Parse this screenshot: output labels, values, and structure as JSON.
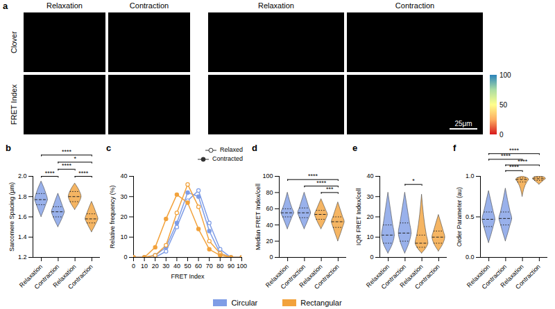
{
  "images": {
    "panel": "a",
    "groups": [
      {
        "columns": [
          "Relaxation",
          "Contraction"
        ]
      },
      {
        "columns": [
          "Relaxation",
          "Contraction"
        ]
      }
    ],
    "rows": [
      "Clover",
      "FRET Index"
    ],
    "colorbar": {
      "range": [
        0,
        100
      ],
      "ticks": [
        0,
        50,
        100
      ]
    },
    "scale_bar": "25μm"
  },
  "shared_legend": {
    "position": "bottom",
    "entries": [
      {
        "name": "Circular",
        "color": "#7f9de6"
      },
      {
        "name": "Rectangular",
        "color": "#f2a23c"
      }
    ]
  },
  "chart_data": [
    {
      "type": "violin",
      "panel": "b",
      "ylabel": "Sarcomere Spacing (μm)",
      "categories": [
        "Relaxation",
        "Contraction",
        "Relaxation",
        "Contraction"
      ],
      "groups": [
        "Circular",
        "Circular",
        "Rectangular",
        "Rectangular"
      ],
      "colors": [
        "#7f9de6",
        "#7f9de6",
        "#f2a23c",
        "#f2a23c"
      ],
      "min": [
        1.6,
        1.5,
        1.67,
        1.45
      ],
      "q1": [
        1.72,
        1.6,
        1.75,
        1.54
      ],
      "median": [
        1.77,
        1.65,
        1.8,
        1.58
      ],
      "q3": [
        1.83,
        1.7,
        1.85,
        1.63
      ],
      "max": [
        1.95,
        1.83,
        1.93,
        1.75
      ],
      "ylim": [
        1.2,
        2.0
      ],
      "yticks": [
        1.2,
        1.4,
        1.6,
        1.8,
        {
          "value": 2.0,
          "label": "2.0"
        }
      ],
      "annotations": [
        {
          "from": 0,
          "to": 1,
          "y": 2.0,
          "text": "****"
        },
        {
          "from": 2,
          "to": 3,
          "y": 2.0,
          "text": "****"
        },
        {
          "from": 1,
          "to": 2,
          "y": 2.07,
          "text": "****"
        },
        {
          "from": 1,
          "to": 3,
          "y": 2.14,
          "text": "*"
        },
        {
          "from": 0,
          "to": 3,
          "y": 2.21,
          "text": "****"
        }
      ]
    },
    {
      "type": "line",
      "panel": "c",
      "xlabel": "FRET Index",
      "ylabel": "Relative frequency (%)",
      "x": [
        0,
        10,
        20,
        30,
        40,
        50,
        60,
        70,
        80,
        90,
        100
      ],
      "xlim": [
        0,
        100
      ],
      "xticks": [
        0,
        10,
        20,
        30,
        40,
        50,
        60,
        70,
        80,
        90,
        100
      ],
      "ylim": [
        0,
        40
      ],
      "yticks": [
        0,
        10,
        20,
        30,
        40
      ],
      "legend": "top-right",
      "series": [
        {
          "name": "Relaxed",
          "group": "Circular",
          "color": "#7f9de6",
          "marker": "circle-open",
          "values": [
            0,
            0,
            0,
            3,
            15,
            28,
            33,
            17,
            4,
            0,
            0
          ]
        },
        {
          "name": "Contracted",
          "group": "Circular",
          "color": "#7f9de6",
          "marker": "circle",
          "values": [
            0,
            0,
            1,
            5,
            17,
            32,
            30,
            13,
            2,
            0,
            0
          ]
        },
        {
          "name": "Relaxed",
          "group": "Rectangular",
          "color": "#f2a23c",
          "marker": "circle-open",
          "values": [
            0,
            0,
            1,
            6,
            22,
            36,
            25,
            8,
            2,
            0,
            0
          ]
        },
        {
          "name": "Contracted",
          "group": "Rectangular",
          "color": "#f2a23c",
          "marker": "circle",
          "values": [
            0,
            0,
            5,
            19,
            31,
            27,
            14,
            4,
            1,
            0,
            0
          ]
        }
      ]
    },
    {
      "type": "violin",
      "panel": "d",
      "ylabel": "Median FRET Index/cell",
      "categories": [
        "Relaxation",
        "Contraction",
        "Relaxation",
        "Contraction"
      ],
      "groups": [
        "Circular",
        "Circular",
        "Rectangular",
        "Rectangular"
      ],
      "colors": [
        "#7f9de6",
        "#7f9de6",
        "#f2a23c",
        "#f2a23c"
      ],
      "min": [
        35,
        35,
        35,
        20
      ],
      "q1": [
        50,
        49,
        47,
        37
      ],
      "median": [
        55,
        55,
        53,
        44
      ],
      "q3": [
        60,
        61,
        58,
        50
      ],
      "max": [
        80,
        80,
        72,
        68
      ],
      "ylim": [
        0,
        100
      ],
      "yticks": [
        0,
        20,
        40,
        60,
        80,
        100
      ],
      "annotations": [
        {
          "from": 2,
          "to": 3,
          "y": 80,
          "text": "***"
        },
        {
          "from": 1,
          "to": 3,
          "y": 88,
          "text": "****"
        },
        {
          "from": 0,
          "to": 3,
          "y": 96,
          "text": "****"
        }
      ]
    },
    {
      "type": "violin",
      "panel": "e",
      "ylabel": "IQR FRET Index/cell",
      "categories": [
        "Relaxation",
        "Contraction",
        "Relaxation",
        "Contraction"
      ],
      "groups": [
        "Circular",
        "Circular",
        "Rectangular",
        "Rectangular"
      ],
      "colors": [
        "#7f9de6",
        "#7f9de6",
        "#f2a23c",
        "#f2a23c"
      ],
      "min": [
        2,
        2,
        2,
        3
      ],
      "q1": [
        7,
        8,
        5,
        7
      ],
      "median": [
        11,
        12,
        7,
        10
      ],
      "q3": [
        16,
        17,
        11,
        13
      ],
      "max": [
        32,
        32,
        31,
        21
      ],
      "ylim": [
        0,
        40
      ],
      "yticks": [
        0,
        10,
        20,
        30,
        40
      ],
      "annotations": [
        {
          "from": 1,
          "to": 2,
          "y": 36,
          "text": "*"
        }
      ]
    },
    {
      "type": "violin",
      "panel": "f",
      "ylabel": "Order Parameter (au)",
      "categories": [
        "Relaxation",
        "Contraction",
        "Relaxation",
        "Contraction"
      ],
      "groups": [
        "Circular",
        "Circular",
        "Rectangular",
        "Rectangular"
      ],
      "colors": [
        "#7f9de6",
        "#7f9de6",
        "#f2a23c",
        "#f2a23c"
      ],
      "min": [
        0.18,
        0.2,
        0.75,
        0.9
      ],
      "q1": [
        0.38,
        0.4,
        0.93,
        0.95
      ],
      "median": [
        0.47,
        0.48,
        0.96,
        0.97
      ],
      "q3": [
        0.56,
        0.56,
        0.98,
        0.99
      ],
      "max": [
        0.82,
        0.85,
        1.0,
        1.0
      ],
      "ylim": [
        0,
        1.0
      ],
      "yticks": [
        {
          "value": 0,
          "label": "0.0"
        },
        0.5,
        {
          "value": 1.0,
          "label": "1.0"
        }
      ],
      "annotations": [
        {
          "from": 1,
          "to": 2,
          "y": 1.07,
          "text": "****"
        },
        {
          "from": 1,
          "to": 3,
          "y": 1.14,
          "text": "****"
        },
        {
          "from": 0,
          "to": 2,
          "y": 1.21,
          "text": "****"
        },
        {
          "from": 0,
          "to": 3,
          "y": 1.28,
          "text": "****"
        }
      ]
    }
  ]
}
